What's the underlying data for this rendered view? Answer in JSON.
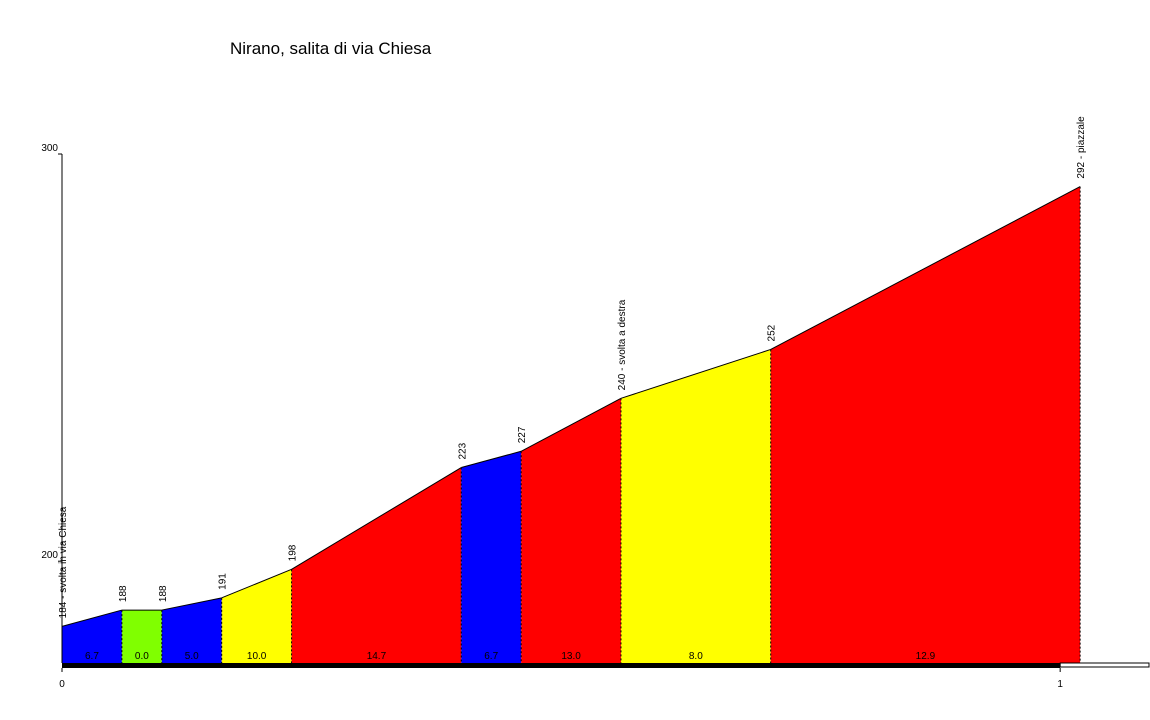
{
  "chart_data": {
    "type": "profile",
    "title": "Nirano, salita di via Chiesa",
    "x": [
      0,
      0.06,
      0.1,
      0.16,
      0.23,
      0.4,
      0.46,
      0.56,
      0.71,
      1.02
    ],
    "values": [
      184,
      188,
      188,
      191,
      198,
      223,
      227,
      240,
      252,
      292
    ],
    "value_labels": [
      "184 - svolta in via Chiesa",
      "188",
      "188",
      "191",
      "198",
      "223",
      "227",
      "240 - svolta a destra",
      "252",
      "292 - piazzale"
    ],
    "segments": {
      "values": [
        6.7,
        0.0,
        5.0,
        10.0,
        14.7,
        6.7,
        13.0,
        8.0,
        12.9
      ],
      "value_labels": [
        "6.7",
        "0.0",
        "5.0",
        "10.0",
        "14.7",
        "6.7",
        "13.0",
        "8.0",
        "12.9"
      ],
      "colors": [
        "#0000ff",
        "#80ff00",
        "#0000ff",
        "#ffff00",
        "#ff0000",
        "#0000ff",
        "#ff0000",
        "#ffff00",
        "#ff0000"
      ]
    },
    "xlim": [
      0,
      1.09
    ],
    "xticks": [
      0,
      1
    ],
    "ylim": [
      175,
      300
    ],
    "yticks": [
      200,
      300
    ]
  }
}
